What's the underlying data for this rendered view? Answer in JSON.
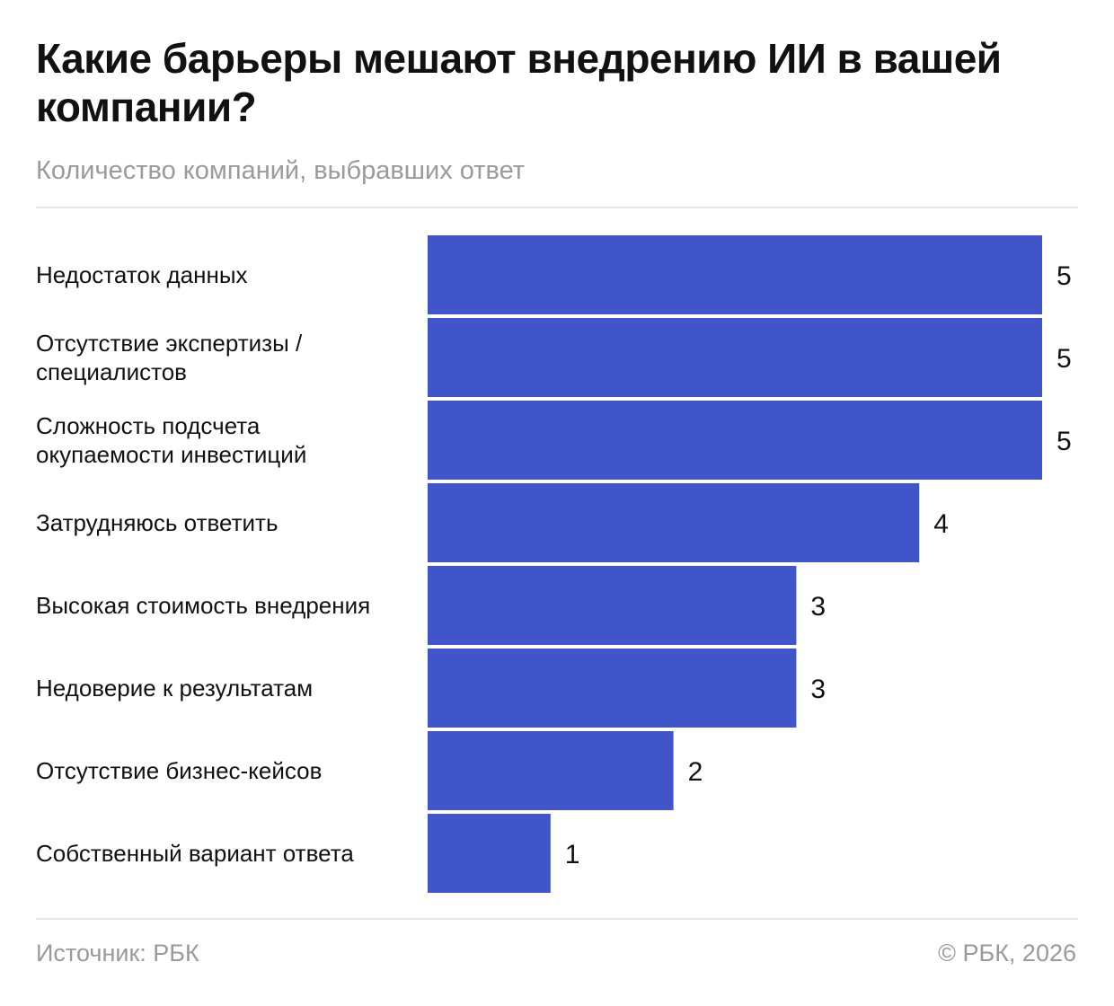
{
  "header": {
    "title": "Какие барьеры мешают внедрению ИИ в вашей компании?",
    "subtitle": "Количество компаний, выбравших ответ"
  },
  "footer": {
    "source": "Источник: РБК",
    "copyright": "© РБК, 2026"
  },
  "colors": {
    "bar": "#4155cb"
  },
  "chart_data": {
    "type": "bar",
    "orientation": "horizontal",
    "title": "Какие барьеры мешают внедрению ИИ в вашей компании?",
    "subtitle": "Количество компаний, выбравших ответ",
    "categories": [
      [
        "Недостаток данных"
      ],
      [
        "Отсутствие экспертизы /",
        "специалистов"
      ],
      [
        "Сложность подсчета",
        "окупаемости инвестиций"
      ],
      [
        "Затрудняюсь ответить"
      ],
      [
        "Высокая стоимость внедрения"
      ],
      [
        "Недоверие к результатам"
      ],
      [
        "Отсутствие бизнес-кейсов"
      ],
      [
        "Собственный вариант ответа"
      ]
    ],
    "values": [
      5,
      5,
      5,
      4,
      3,
      3,
      2,
      1
    ],
    "xlim": [
      0,
      5
    ],
    "grid": false,
    "legend": "none"
  }
}
